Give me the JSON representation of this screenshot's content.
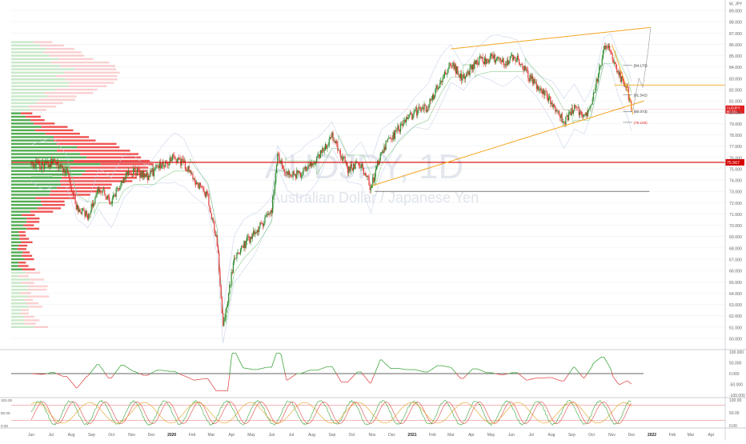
{
  "symbol_tag": "W, JPY",
  "watermark": {
    "ticker": "AUDJPY, 1D",
    "name": "Australian Dollar / Japanese Yen"
  },
  "colors": {
    "up": "#2e8b2e",
    "down": "#e23b3b",
    "orange": "#f5a623",
    "hline": "#d50000",
    "grid": "#eef0f3",
    "axis_text": "#666666",
    "band": "#c9d3ea"
  },
  "price_axis": {
    "ticks": [
      "89.000",
      "88.000",
      "87.000",
      "86.000",
      "85.000",
      "84.000",
      "83.000",
      "82.000",
      "81.000",
      "80.000",
      "79.000",
      "78.000",
      "77.000",
      "76.000",
      "75.000",
      "74.000",
      "73.000",
      "72.000",
      "71.000",
      "70.000",
      "69.000",
      "68.000",
      "67.000",
      "66.000",
      "65.000",
      "64.000",
      "63.000",
      "62.000",
      "61.000",
      "60.000"
    ],
    "current_label": "AUDJPY",
    "current_value": "80.241",
    "current_sub": "22:45:33",
    "hline_label": "75.567"
  },
  "annotations": {
    "t1": "(84.170)",
    "t2": "(81.542)",
    "t3": "(80.073)",
    "t4": "(79.106)"
  },
  "rsi_axis": {
    "ticks": [
      "100.000",
      "50.000",
      "0.000",
      "-50.000",
      "-100.000"
    ]
  },
  "stoch_axis": {
    "ticks": [
      "100.00",
      "50.00",
      "0.00"
    ],
    "left_ticks": [
      "100.00",
      "50.00",
      "0.00"
    ]
  },
  "time_axis": {
    "labels": [
      "Jun",
      "Jul",
      "Aug",
      "Sep",
      "Oct",
      "Nov",
      "Dec",
      "2020",
      "Feb",
      "Mar",
      "Apr",
      "May",
      "Jun",
      "Jul",
      "Aug",
      "Sep",
      "Oct",
      "Nov",
      "Dec",
      "2021",
      "Feb",
      "Mar",
      "Apr",
      "May",
      "Jun",
      "Jul",
      "Aug",
      "Sep",
      "Oct",
      "Nov",
      "Dec",
      "2022",
      "Feb",
      "Mar",
      "Apr"
    ]
  },
  "chart_data": {
    "type": "candlestick",
    "title": "AUDJPY, 1D",
    "subtitle": "Australian Dollar / Japanese Yen",
    "x_period": [
      "2019-06",
      "2022-04"
    ],
    "ylim": [
      59.5,
      89.5
    ],
    "close_path": [
      {
        "date": "2019-06-01",
        "close": 75.5
      },
      {
        "date": "2019-06-20",
        "close": 75.3
      },
      {
        "date": "2019-07-05",
        "close": 75.6
      },
      {
        "date": "2019-07-25",
        "close": 74.8
      },
      {
        "date": "2019-08-10",
        "close": 71.5
      },
      {
        "date": "2019-08-26",
        "close": 70.9
      },
      {
        "date": "2019-09-12",
        "close": 73.2
      },
      {
        "date": "2019-10-01",
        "close": 72.0
      },
      {
        "date": "2019-10-20",
        "close": 74.3
      },
      {
        "date": "2019-11-05",
        "close": 74.8
      },
      {
        "date": "2019-11-25",
        "close": 74.3
      },
      {
        "date": "2019-12-15",
        "close": 75.3
      },
      {
        "date": "2020-01-05",
        "close": 76.0
      },
      {
        "date": "2020-01-20",
        "close": 75.5
      },
      {
        "date": "2020-02-05",
        "close": 74.0
      },
      {
        "date": "2020-02-25",
        "close": 72.5
      },
      {
        "date": "2020-03-10",
        "close": 68.5
      },
      {
        "date": "2020-03-19",
        "close": 61.0
      },
      {
        "date": "2020-04-05",
        "close": 67.0
      },
      {
        "date": "2020-04-20",
        "close": 68.3
      },
      {
        "date": "2020-05-10",
        "close": 69.5
      },
      {
        "date": "2020-06-01",
        "close": 71.5
      },
      {
        "date": "2020-06-10",
        "close": 76.0
      },
      {
        "date": "2020-06-25",
        "close": 74.5
      },
      {
        "date": "2020-07-15",
        "close": 74.5
      },
      {
        "date": "2020-08-10",
        "close": 75.8
      },
      {
        "date": "2020-09-01",
        "close": 78.0
      },
      {
        "date": "2020-09-25",
        "close": 75.0
      },
      {
        "date": "2020-10-15",
        "close": 75.5
      },
      {
        "date": "2020-10-30",
        "close": 73.3
      },
      {
        "date": "2020-11-15",
        "close": 76.5
      },
      {
        "date": "2020-12-10",
        "close": 78.5
      },
      {
        "date": "2021-01-05",
        "close": 80.0
      },
      {
        "date": "2021-01-25",
        "close": 80.5
      },
      {
        "date": "2021-02-15",
        "close": 83.0
      },
      {
        "date": "2021-03-01",
        "close": 84.3
      },
      {
        "date": "2021-03-20",
        "close": 83.0
      },
      {
        "date": "2021-04-10",
        "close": 84.5
      },
      {
        "date": "2021-05-01",
        "close": 84.8
      },
      {
        "date": "2021-05-20",
        "close": 84.5
      },
      {
        "date": "2021-06-10",
        "close": 84.8
      },
      {
        "date": "2021-06-25",
        "close": 83.3
      },
      {
        "date": "2021-07-15",
        "close": 82.0
      },
      {
        "date": "2021-08-01",
        "close": 81.0
      },
      {
        "date": "2021-08-20",
        "close": 79.0
      },
      {
        "date": "2021-09-05",
        "close": 80.5
      },
      {
        "date": "2021-09-20",
        "close": 79.5
      },
      {
        "date": "2021-10-01",
        "close": 81.0
      },
      {
        "date": "2021-10-20",
        "close": 85.5
      },
      {
        "date": "2021-10-30",
        "close": 85.5
      },
      {
        "date": "2021-11-10",
        "close": 83.5
      },
      {
        "date": "2021-11-25",
        "close": 81.8
      },
      {
        "date": "2021-12-02",
        "close": 80.2
      }
    ],
    "hline": 75.567,
    "rsi": {
      "range": [
        -100,
        100
      ],
      "zero": 0
    },
    "stochastic": {
      "range": [
        0,
        100
      ]
    }
  }
}
